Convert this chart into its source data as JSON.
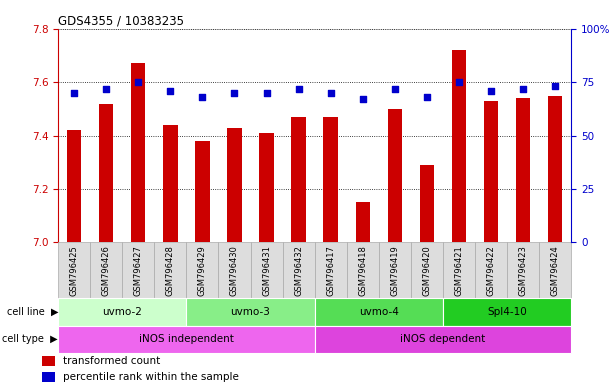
{
  "title": "GDS4355 / 10383235",
  "samples": [
    "GSM796425",
    "GSM796426",
    "GSM796427",
    "GSM796428",
    "GSM796429",
    "GSM796430",
    "GSM796431",
    "GSM796432",
    "GSM796417",
    "GSM796418",
    "GSM796419",
    "GSM796420",
    "GSM796421",
    "GSM796422",
    "GSM796423",
    "GSM796424"
  ],
  "bar_values": [
    7.42,
    7.52,
    7.67,
    7.44,
    7.38,
    7.43,
    7.41,
    7.47,
    7.47,
    7.15,
    7.5,
    7.29,
    7.72,
    7.53,
    7.54,
    7.55
  ],
  "dot_values": [
    70,
    72,
    75,
    71,
    68,
    70,
    70,
    72,
    70,
    67,
    72,
    68,
    75,
    71,
    72,
    73
  ],
  "ylim_left": [
    7.0,
    7.8
  ],
  "ylim_right": [
    0,
    100
  ],
  "yticks_left": [
    7.0,
    7.2,
    7.4,
    7.6,
    7.8
  ],
  "yticks_right": [
    0,
    25,
    50,
    75,
    100
  ],
  "bar_color": "#cc0000",
  "dot_color": "#0000cc",
  "cell_lines": [
    {
      "label": "uvmo-2",
      "start": 0,
      "end": 4,
      "color": "#ccffcc"
    },
    {
      "label": "uvmo-3",
      "start": 4,
      "end": 8,
      "color": "#88ee88"
    },
    {
      "label": "uvmo-4",
      "start": 8,
      "end": 12,
      "color": "#55dd55"
    },
    {
      "label": "Spl4-10",
      "start": 12,
      "end": 16,
      "color": "#22cc22"
    }
  ],
  "cell_types": [
    {
      "label": "iNOS independent",
      "start": 0,
      "end": 8,
      "color": "#ee66ee"
    },
    {
      "label": "iNOS dependent",
      "start": 8,
      "end": 16,
      "color": "#dd44dd"
    }
  ],
  "cell_line_label": "cell line",
  "cell_type_label": "cell type",
  "legend_bar_label": "transformed count",
  "legend_dot_label": "percentile rank within the sample",
  "axis_color_left": "#cc0000",
  "axis_color_right": "#0000cc",
  "tick_bg_color": "#dddddd",
  "tick_edge_color": "#aaaaaa"
}
